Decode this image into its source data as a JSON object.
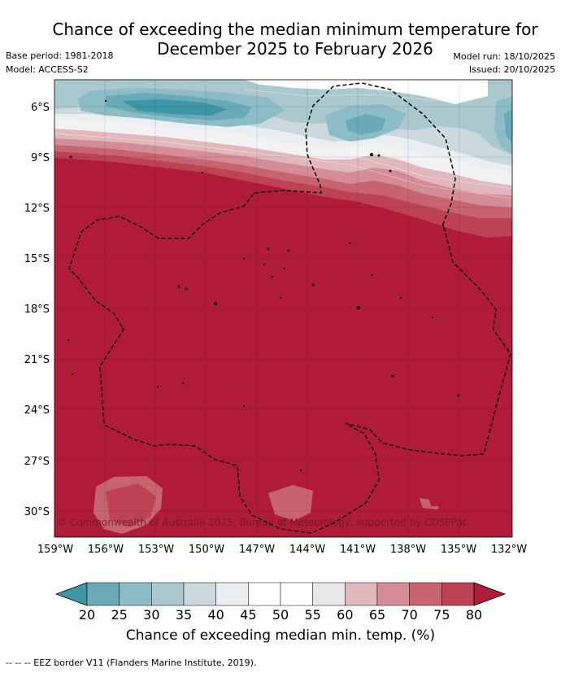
{
  "title": {
    "line1": "Chance of exceeding the median minimum temperature for",
    "line2": "December 2025 to February 2026"
  },
  "meta": {
    "base_period": "Base period: 1981-2018",
    "model": "Model: ACCESS-S2",
    "model_run": "Model run: 18/10/2025",
    "issued": "Issued: 20/10/2025"
  },
  "map": {
    "lat_ticks": [
      "6°S",
      "9°S",
      "12°S",
      "15°S",
      "18°S",
      "21°S",
      "24°S",
      "27°S",
      "30°S"
    ],
    "lon_ticks": [
      "159°W",
      "156°W",
      "153°W",
      "150°W",
      "147°W",
      "144°W",
      "141°W",
      "138°W",
      "135°W",
      "132°W"
    ],
    "copyright": "© Commonwealth of Australia 2025, Bureau of Meteorology, supported by COSPPac"
  },
  "colorbar": {
    "labels": [
      "20",
      "25",
      "30",
      "35",
      "40",
      "45",
      "50",
      "55",
      "60",
      "65",
      "70",
      "75",
      "80"
    ],
    "colors": [
      "#3d96a6",
      "#6aaab8",
      "#8cbcc6",
      "#aac8ce",
      "#cbd9de",
      "#eaeff2",
      "#ffffff",
      "#ffffff",
      "#e8e8ea",
      "#e2b8bf",
      "#d48c97",
      "#c8646f",
      "#be4352",
      "#b01b37"
    ],
    "title": "Chance of exceeding median min. temp. (%)"
  },
  "footnote": "--  --  -- EEZ border V11 (Flanders Marine Institute, 2019)."
}
